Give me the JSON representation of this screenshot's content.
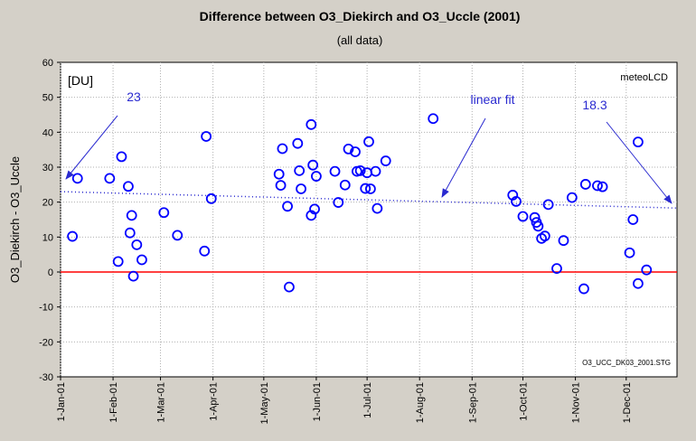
{
  "chart_data": {
    "type": "scatter",
    "title": "Difference between O3_Diekirch  and  O3_Uccle (2001)",
    "subtitle": "(all data)",
    "ylabel": "O3_Diekirch - O3_Uccle",
    "unit_label": "[DU]",
    "watermark": "meteoLCD",
    "file_label": "O3_UCC_DK03_2001.STG",
    "ylim": [
      -30,
      60
    ],
    "yticks": [
      -30,
      -20,
      -10,
      0,
      10,
      20,
      30,
      40,
      50,
      60
    ],
    "xlim": [
      "2001-01-01",
      "2001-12-31"
    ],
    "xticks": [
      {
        "date": "2001-01-01",
        "label": "1-Jan-01"
      },
      {
        "date": "2001-02-01",
        "label": "1-Feb-01"
      },
      {
        "date": "2001-03-01",
        "label": "1-Mar-01"
      },
      {
        "date": "2001-04-01",
        "label": "1-Apr-01"
      },
      {
        "date": "2001-05-01",
        "label": "1-May-01"
      },
      {
        "date": "2001-06-01",
        "label": "1-Jun-01"
      },
      {
        "date": "2001-07-01",
        "label": "1-Jul-01"
      },
      {
        "date": "2001-08-01",
        "label": "1-Aug-01"
      },
      {
        "date": "2001-09-01",
        "label": "1-Sep-01"
      },
      {
        "date": "2001-10-01",
        "label": "1-Oct-01"
      },
      {
        "date": "2001-11-01",
        "label": "1-Nov-01"
      },
      {
        "date": "2001-12-01",
        "label": "1-Dec-01"
      }
    ],
    "grid": true,
    "zero_line": {
      "y": 0,
      "color": "#ff0000"
    },
    "point_color": "#0000ff",
    "fit": {
      "name": "linear fit",
      "start": {
        "x": "2001-01-01",
        "y": 23
      },
      "end": {
        "x": "2001-12-31",
        "y": 18.3
      },
      "color": "#2a2ad0"
    },
    "annotations": {
      "start_label": "23",
      "fit_label": "linear fit",
      "end_label": "18.3"
    },
    "points": [
      {
        "x": "2001-01-08",
        "y": 10.2
      },
      {
        "x": "2001-01-11",
        "y": 26.8
      },
      {
        "x": "2001-01-30",
        "y": 26.8
      },
      {
        "x": "2001-02-04",
        "y": 3.0
      },
      {
        "x": "2001-02-06",
        "y": 33.0
      },
      {
        "x": "2001-02-10",
        "y": 24.5
      },
      {
        "x": "2001-02-11",
        "y": 11.2
      },
      {
        "x": "2001-02-12",
        "y": 16.2
      },
      {
        "x": "2001-02-13",
        "y": -1.2
      },
      {
        "x": "2001-02-15",
        "y": 7.8
      },
      {
        "x": "2001-02-18",
        "y": 3.5
      },
      {
        "x": "2001-03-03",
        "y": 17.0
      },
      {
        "x": "2001-03-11",
        "y": 10.5
      },
      {
        "x": "2001-03-27",
        "y": 6.0
      },
      {
        "x": "2001-03-28",
        "y": 38.8
      },
      {
        "x": "2001-03-31",
        "y": 21.0
      },
      {
        "x": "2001-05-10",
        "y": 28.0
      },
      {
        "x": "2001-05-11",
        "y": 24.8
      },
      {
        "x": "2001-05-12",
        "y": 35.3
      },
      {
        "x": "2001-05-15",
        "y": 18.8
      },
      {
        "x": "2001-05-16",
        "y": -4.3
      },
      {
        "x": "2001-05-21",
        "y": 36.8
      },
      {
        "x": "2001-05-22",
        "y": 29.0
      },
      {
        "x": "2001-05-23",
        "y": 23.8
      },
      {
        "x": "2001-05-29",
        "y": 42.2
      },
      {
        "x": "2001-05-29",
        "y": 16.2
      },
      {
        "x": "2001-05-30",
        "y": 30.6
      },
      {
        "x": "2001-05-31",
        "y": 18.0
      },
      {
        "x": "2001-06-01",
        "y": 27.4
      },
      {
        "x": "2001-06-12",
        "y": 28.8
      },
      {
        "x": "2001-06-14",
        "y": 19.9
      },
      {
        "x": "2001-06-18",
        "y": 24.9
      },
      {
        "x": "2001-06-20",
        "y": 35.2
      },
      {
        "x": "2001-06-24",
        "y": 34.4
      },
      {
        "x": "2001-06-25",
        "y": 28.8
      },
      {
        "x": "2001-06-27",
        "y": 29.0
      },
      {
        "x": "2001-06-30",
        "y": 23.9
      },
      {
        "x": "2001-07-01",
        "y": 28.4
      },
      {
        "x": "2001-07-02",
        "y": 37.3
      },
      {
        "x": "2001-07-03",
        "y": 23.8
      },
      {
        "x": "2001-07-06",
        "y": 28.8
      },
      {
        "x": "2001-07-07",
        "y": 18.2
      },
      {
        "x": "2001-07-12",
        "y": 31.8
      },
      {
        "x": "2001-08-09",
        "y": 43.9
      },
      {
        "x": "2001-09-25",
        "y": 22.0
      },
      {
        "x": "2001-09-27",
        "y": 20.2
      },
      {
        "x": "2001-10-01",
        "y": 15.9
      },
      {
        "x": "2001-10-08",
        "y": 15.6
      },
      {
        "x": "2001-10-09",
        "y": 14.2
      },
      {
        "x": "2001-10-10",
        "y": 13.1
      },
      {
        "x": "2001-10-12",
        "y": 9.6
      },
      {
        "x": "2001-10-14",
        "y": 10.3
      },
      {
        "x": "2001-10-16",
        "y": 19.3
      },
      {
        "x": "2001-10-21",
        "y": 1.0
      },
      {
        "x": "2001-10-25",
        "y": 9.0
      },
      {
        "x": "2001-10-30",
        "y": 21.3
      },
      {
        "x": "2001-11-06",
        "y": -4.8
      },
      {
        "x": "2001-11-07",
        "y": 25.1
      },
      {
        "x": "2001-11-14",
        "y": 24.7
      },
      {
        "x": "2001-11-17",
        "y": 24.4
      },
      {
        "x": "2001-12-03",
        "y": 5.5
      },
      {
        "x": "2001-12-05",
        "y": 15.0
      },
      {
        "x": "2001-12-08",
        "y": -3.3
      },
      {
        "x": "2001-12-08",
        "y": 37.2
      },
      {
        "x": "2001-12-13",
        "y": 0.6
      }
    ]
  }
}
